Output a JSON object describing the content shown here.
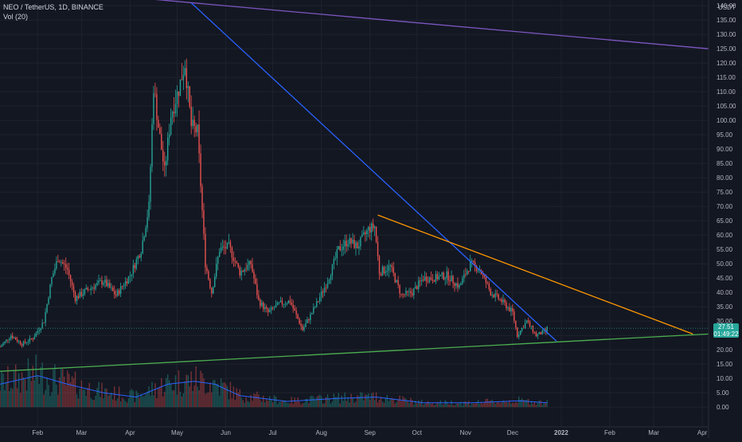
{
  "legend": {
    "symbol_line": "NEO / TetherUS, 1D, BINANCE",
    "indicator_line": "Vol (20)"
  },
  "price_axis": {
    "currency": "USDT",
    "tick_labels": [
      "140.00",
      "135.00",
      "130.00",
      "125.00",
      "120.00",
      "115.00",
      "110.00",
      "105.00",
      "100.00",
      "95.00",
      "90.00",
      "85.00",
      "80.00",
      "75.00",
      "70.00",
      "65.00",
      "60.00",
      "55.00",
      "50.00",
      "45.00",
      "40.00",
      "35.00",
      "30.00",
      "25.00",
      "20.00",
      "15.00",
      "10.00",
      "5.00",
      "0.00"
    ]
  },
  "last_price": {
    "value": "27.51",
    "countdown": "01:49:22"
  },
  "colors": {
    "background": "#131722",
    "grid": "#1e222d",
    "up": "#26a69a",
    "down": "#ef5350",
    "volume_ma": "#2962ff",
    "purple_trendline": "#7e57c2",
    "blue_trendline": "#2962ff",
    "orange_trendline": "#ff9800",
    "green_trendline": "#4caf50"
  },
  "chart_data": {
    "type": "candlestick",
    "instrument": "NEO / TetherUS",
    "interval": "1D",
    "exchange": "BINANCE",
    "x_axis": {
      "tick_labels": [
        "Feb",
        "Mar",
        "Apr",
        "May",
        "Jun",
        "Jul",
        "Aug",
        "Sep",
        "Oct",
        "Nov",
        "Dec",
        "2022",
        "Feb",
        "Mar",
        "Apr"
      ],
      "range": [
        "2021-01-08",
        "2022-04-05"
      ]
    },
    "y_axis": {
      "unit": "USDT",
      "range": [
        -3,
        146
      ]
    },
    "price_path": [
      {
        "date": "2021-01-08",
        "price": 21
      },
      {
        "date": "2021-01-15",
        "price": 25
      },
      {
        "date": "2021-01-22",
        "price": 22
      },
      {
        "date": "2021-01-29",
        "price": 24
      },
      {
        "date": "2021-02-05",
        "price": 30
      },
      {
        "date": "2021-02-10",
        "price": 45
      },
      {
        "date": "2021-02-14",
        "price": 52
      },
      {
        "date": "2021-02-20",
        "price": 48
      },
      {
        "date": "2021-02-25",
        "price": 38
      },
      {
        "date": "2021-03-05",
        "price": 41
      },
      {
        "date": "2021-03-15",
        "price": 44
      },
      {
        "date": "2021-03-23",
        "price": 39
      },
      {
        "date": "2021-04-01",
        "price": 46
      },
      {
        "date": "2021-04-08",
        "price": 55
      },
      {
        "date": "2021-04-13",
        "price": 70
      },
      {
        "date": "2021-04-16",
        "price": 112
      },
      {
        "date": "2021-04-19",
        "price": 98
      },
      {
        "date": "2021-04-23",
        "price": 82
      },
      {
        "date": "2021-04-27",
        "price": 102
      },
      {
        "date": "2021-05-02",
        "price": 111
      },
      {
        "date": "2021-05-06",
        "price": 120
      },
      {
        "date": "2021-05-10",
        "price": 98
      },
      {
        "date": "2021-05-14",
        "price": 96
      },
      {
        "date": "2021-05-19",
        "price": 50
      },
      {
        "date": "2021-05-23",
        "price": 40
      },
      {
        "date": "2021-05-28",
        "price": 55
      },
      {
        "date": "2021-06-03",
        "price": 56
      },
      {
        "date": "2021-06-10",
        "price": 47
      },
      {
        "date": "2021-06-17",
        "price": 50
      },
      {
        "date": "2021-06-22",
        "price": 37
      },
      {
        "date": "2021-06-28",
        "price": 33
      },
      {
        "date": "2021-07-05",
        "price": 36
      },
      {
        "date": "2021-07-12",
        "price": 37
      },
      {
        "date": "2021-07-20",
        "price": 27
      },
      {
        "date": "2021-07-28",
        "price": 35
      },
      {
        "date": "2021-08-05",
        "price": 44
      },
      {
        "date": "2021-08-12",
        "price": 55
      },
      {
        "date": "2021-08-18",
        "price": 58
      },
      {
        "date": "2021-08-24",
        "price": 56
      },
      {
        "date": "2021-08-31",
        "price": 62
      },
      {
        "date": "2021-09-04",
        "price": 63
      },
      {
        "date": "2021-09-07",
        "price": 47
      },
      {
        "date": "2021-09-14",
        "price": 49
      },
      {
        "date": "2021-09-21",
        "price": 39
      },
      {
        "date": "2021-09-28",
        "price": 40
      },
      {
        "date": "2021-10-05",
        "price": 45
      },
      {
        "date": "2021-10-12",
        "price": 45
      },
      {
        "date": "2021-10-20",
        "price": 46
      },
      {
        "date": "2021-10-28",
        "price": 42
      },
      {
        "date": "2021-11-04",
        "price": 50
      },
      {
        "date": "2021-11-10",
        "price": 48
      },
      {
        "date": "2021-11-17",
        "price": 40
      },
      {
        "date": "2021-11-24",
        "price": 37
      },
      {
        "date": "2021-12-01",
        "price": 33
      },
      {
        "date": "2021-12-04",
        "price": 25
      },
      {
        "date": "2021-12-10",
        "price": 30
      },
      {
        "date": "2021-12-16",
        "price": 25
      },
      {
        "date": "2021-12-22",
        "price": 26.5
      },
      {
        "date": "2021-12-23",
        "price": 27.51
      }
    ],
    "volume_ma_path": [
      {
        "date": "2021-01-08",
        "value": 8
      },
      {
        "date": "2021-02-01",
        "value": 11
      },
      {
        "date": "2021-02-20",
        "value": 8
      },
      {
        "date": "2021-03-15",
        "value": 5
      },
      {
        "date": "2021-04-05",
        "value": 3.5
      },
      {
        "date": "2021-04-25",
        "value": 8
      },
      {
        "date": "2021-05-12",
        "value": 9
      },
      {
        "date": "2021-05-25",
        "value": 8
      },
      {
        "date": "2021-06-10",
        "value": 4
      },
      {
        "date": "2021-07-10",
        "value": 2
      },
      {
        "date": "2021-08-10",
        "value": 3
      },
      {
        "date": "2021-09-05",
        "value": 3.5
      },
      {
        "date": "2021-10-05",
        "value": 1.5
      },
      {
        "date": "2021-11-05",
        "value": 1.5
      },
      {
        "date": "2021-12-05",
        "value": 2.2
      },
      {
        "date": "2021-12-23",
        "value": 1.5
      }
    ],
    "trendlines": [
      {
        "name": "purple",
        "from": {
          "date": "2021-01-08",
          "price": 147
        },
        "to": {
          "date": "2022-04-05",
          "price": 125
        }
      },
      {
        "name": "blue",
        "from": {
          "date": "2021-05-10",
          "price": 141
        },
        "to": {
          "date": "2021-12-29",
          "price": 23
        }
      },
      {
        "name": "orange",
        "from": {
          "date": "2021-09-06",
          "price": 67
        },
        "to": {
          "date": "2022-03-26",
          "price": 25.5
        }
      },
      {
        "name": "green",
        "from": {
          "date": "2021-01-08",
          "price": 12.5
        },
        "to": {
          "date": "2022-04-05",
          "price": 25.5
        }
      }
    ],
    "grid": true
  }
}
